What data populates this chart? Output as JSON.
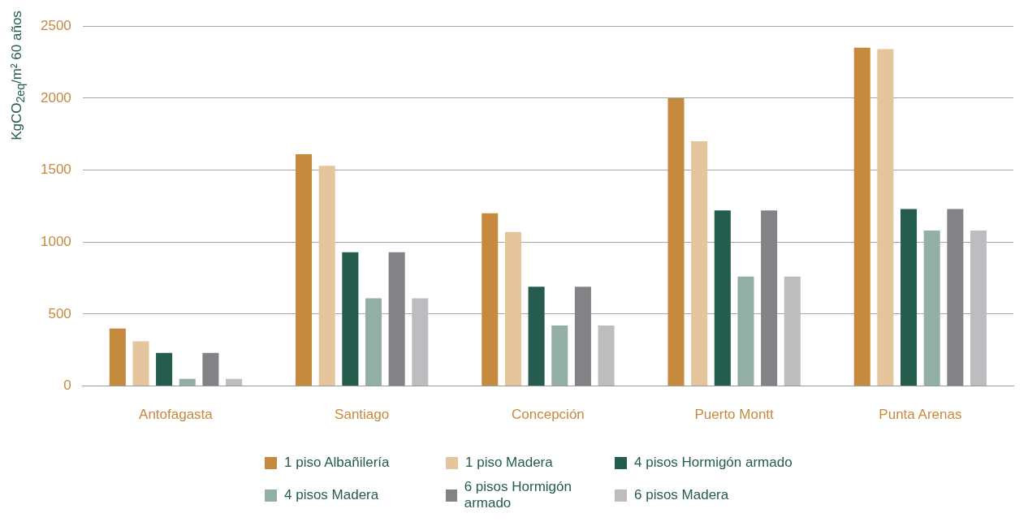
{
  "chart_data": {
    "type": "bar",
    "ylabel": "KgCO$_{2eq}$/m² 60 años",
    "categories": [
      "Antofagasta",
      "Santiago",
      "Concepción",
      "Puerto Montt",
      "Punta Arenas"
    ],
    "series": [
      {
        "name": "1 piso Albañilería",
        "color": "#c68a3e",
        "values": [
          400,
          1610,
          1200,
          2000,
          2350
        ]
      },
      {
        "name": "1 piso Madera",
        "color": "#e5c59c",
        "values": [
          310,
          1530,
          1070,
          1700,
          2340
        ]
      },
      {
        "name": "4 pisos Hormigón armado",
        "color": "#245c4e",
        "values": [
          230,
          930,
          690,
          1220,
          1230
        ]
      },
      {
        "name": "4 pisos Madera",
        "color": "#93afa5",
        "values": [
          50,
          610,
          420,
          760,
          1080
        ]
      },
      {
        "name": "6 pisos Hormigón armado",
        "color": "#838387",
        "values": [
          230,
          930,
          690,
          1220,
          1230
        ]
      },
      {
        "name": "6 pisos Madera",
        "color": "#bdbdbf",
        "values": [
          50,
          610,
          420,
          760,
          1080
        ]
      }
    ],
    "ylim": [
      0,
      2500
    ],
    "yticks": [
      0,
      500,
      1000,
      1500,
      2000,
      2500
    ],
    "grid": "y",
    "legend": "bottom"
  }
}
